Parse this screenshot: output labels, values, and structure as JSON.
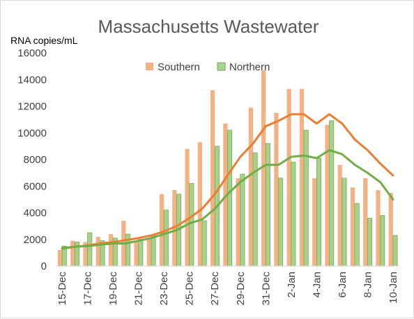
{
  "chart_data": {
    "type": "bar",
    "title": "Massachusetts Wastewater",
    "ylabel": "RNA copies/mL",
    "xlabel": "",
    "ylim": [
      0,
      16000
    ],
    "y_ticks": [
      "0",
      "2000",
      "4000",
      "6000",
      "8000",
      "10000",
      "12000",
      "14000",
      "16000"
    ],
    "categories": [
      "15-Dec",
      "16-Dec",
      "17-Dec",
      "18-Dec",
      "19-Dec",
      "20-Dec",
      "21-Dec",
      "22-Dec",
      "23-Dec",
      "24-Dec",
      "25-Dec",
      "26-Dec",
      "27-Dec",
      "28-Dec",
      "29-Dec",
      "30-Dec",
      "31-Dec",
      "1-Jan",
      "2-Jan",
      "3-Jan",
      "4-Jan",
      "5-Jan",
      "6-Jan",
      "7-Jan",
      "8-Jan",
      "9-Jan",
      "10-Jan"
    ],
    "x_tick_labels": [
      "15-Dec",
      "17-Dec",
      "19-Dec",
      "21-Dec",
      "23-Dec",
      "25-Dec",
      "27-Dec",
      "29-Dec",
      "31-Dec",
      "2-Jan",
      "4-Jan",
      "6-Jan",
      "8-Jan",
      "10-Jan"
    ],
    "legend_position": "top-center",
    "grid": false,
    "series": [
      {
        "name": "Southern",
        "kind": "bar",
        "color": "#f4b183",
        "values": [
          1200,
          1900,
          1800,
          2200,
          2400,
          3400,
          1800,
          2100,
          5400,
          5700,
          8800,
          9300,
          13200,
          10700,
          6600,
          11900,
          14700,
          11500,
          13300,
          13300,
          6600,
          10600,
          7600,
          5900,
          6600,
          5700,
          5500
        ]
      },
      {
        "name": "Northern",
        "kind": "bar",
        "color": "#a9d18e",
        "border": "#70ad47",
        "values": [
          1500,
          1800,
          2500,
          1900,
          2100,
          2400,
          2000,
          2300,
          4200,
          5400,
          6200,
          3400,
          9000,
          10200,
          6900,
          8500,
          9200,
          6600,
          7800,
          10200,
          8100,
          10900,
          6600,
          4700,
          3600,
          3800,
          2300
        ]
      },
      {
        "kind": "line",
        "color": "#ed7d31",
        "values": [
          1300,
          1450,
          1550,
          1700,
          1800,
          1950,
          2100,
          2300,
          2600,
          3000,
          3600,
          4300,
          5400,
          6800,
          8200,
          9200,
          10500,
          10900,
          11400,
          11400,
          10700,
          11400,
          10700,
          9500,
          8700,
          7700,
          6800
        ]
      },
      {
        "kind": "line",
        "color": "#70ad47",
        "values": [
          1350,
          1450,
          1500,
          1600,
          1700,
          1700,
          1900,
          2100,
          2400,
          2700,
          3200,
          3500,
          4300,
          5400,
          6300,
          7000,
          7600,
          7600,
          8200,
          8300,
          8100,
          8700,
          8400,
          7600,
          7000,
          6300,
          5000
        ]
      }
    ]
  }
}
